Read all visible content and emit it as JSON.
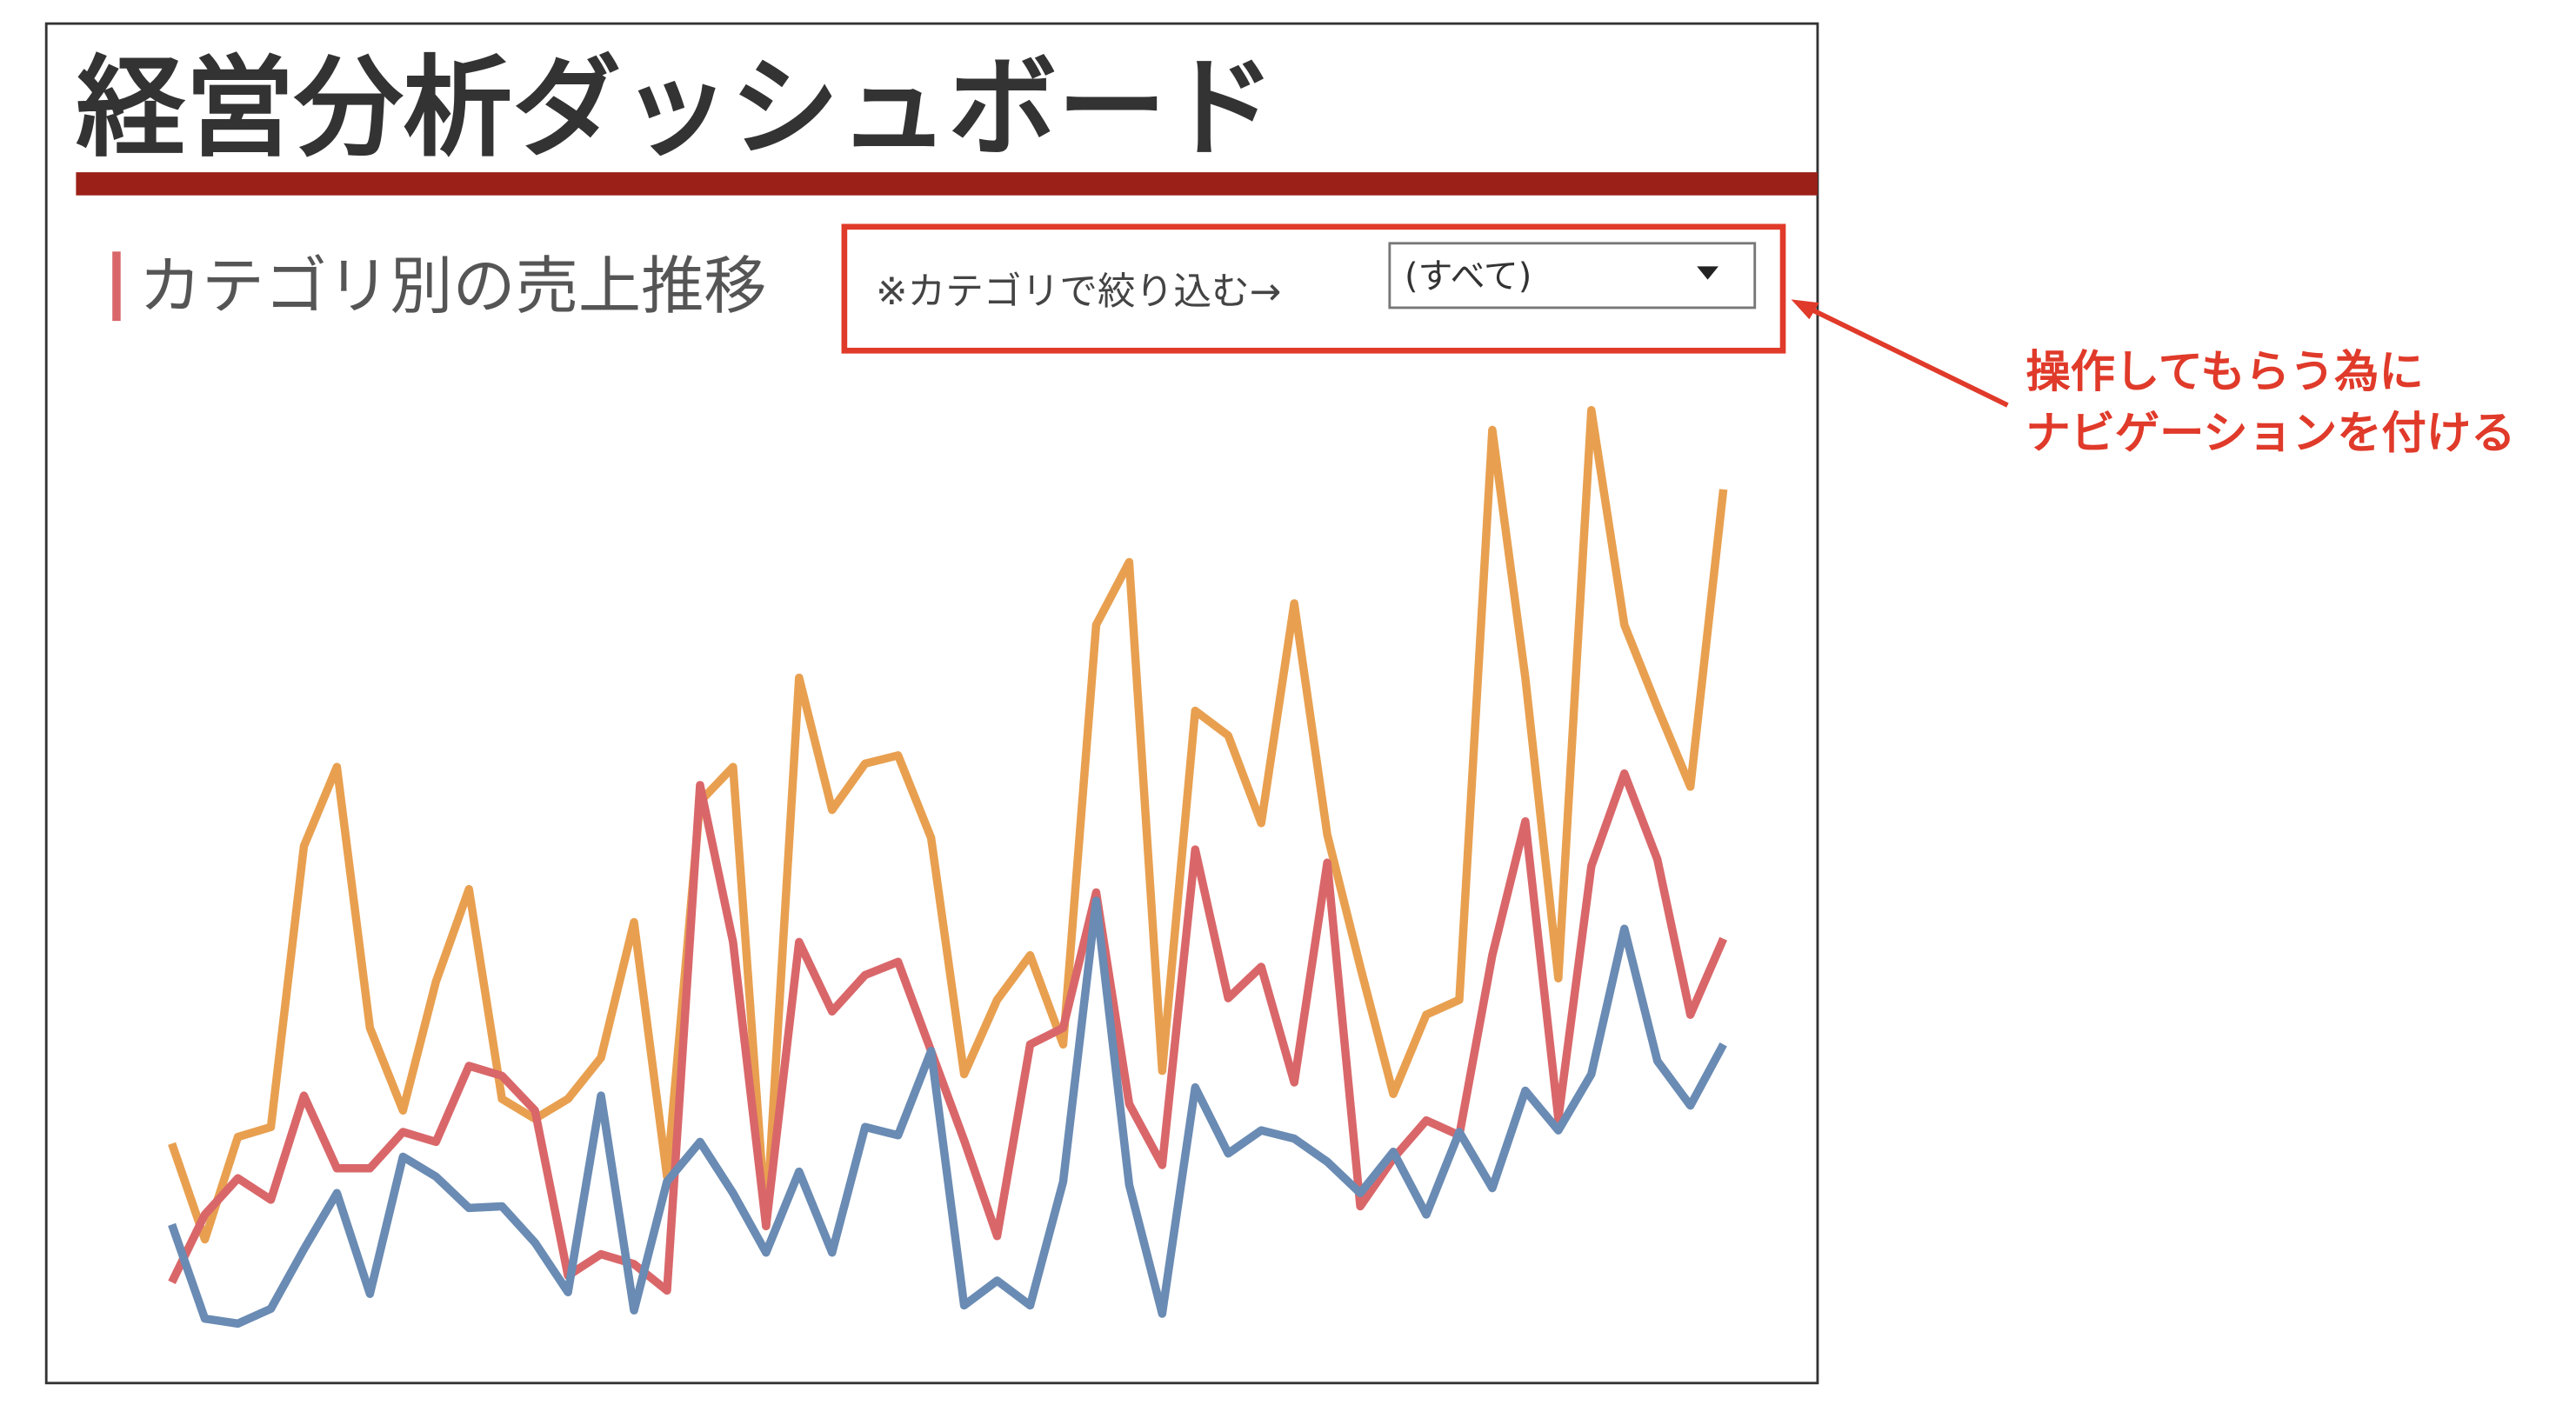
{
  "header": {
    "title": "経営分析ダッシュボード"
  },
  "section": {
    "title": "カテゴリ別の売上推移"
  },
  "filter": {
    "label": "※カテゴリで絞り込む→",
    "selected": "(すべて)"
  },
  "annotation": {
    "lines": [
      "操作してもらう為に",
      "ナビゲーションを付ける"
    ]
  },
  "chart_data": {
    "type": "line",
    "categories": [
      null,
      null,
      null,
      null,
      null,
      null,
      null,
      null,
      null,
      null,
      null,
      null,
      null,
      null,
      null,
      null,
      null,
      null,
      null,
      null,
      null,
      null,
      null,
      null,
      null,
      null,
      null,
      null,
      null,
      null,
      null,
      null,
      null,
      null,
      null,
      null,
      null,
      null,
      null,
      null,
      null,
      null,
      null,
      null,
      null,
      null,
      null,
      null
    ],
    "ylim": [
      0,
      620
    ],
    "series": [
      {
        "color": "#e8a050",
        "values": [
          138,
          80,
          142,
          148,
          318,
          366,
          208,
          158,
          236,
          292,
          165,
          153,
          165,
          190,
          272,
          118,
          345,
          366,
          88,
          420,
          340,
          368,
          373,
          323,
          180,
          225,
          252,
          198,
          452,
          490,
          182,
          400,
          385,
          332,
          465,
          325,
          245,
          168,
          216,
          225,
          570,
          420,
          238,
          582,
          452,
          402,
          354,
          534
        ]
      },
      {
        "color": "#d9676a",
        "values": [
          54,
          95,
          117,
          104,
          167,
          123,
          123,
          145,
          139,
          185,
          179,
          158,
          58,
          71,
          65,
          49,
          355,
          260,
          88,
          260,
          218,
          240,
          248,
          194,
          140,
          82,
          198,
          208,
          290,
          162,
          125,
          316,
          226,
          245,
          175,
          308,
          100,
          129,
          152,
          143,
          252,
          333,
          153,
          306,
          362,
          310,
          216,
          262
        ]
      },
      {
        "color": "#6a8bb3",
        "values": [
          89,
          32,
          29,
          38,
          74,
          108,
          47,
          130,
          118,
          99,
          100,
          78,
          48,
          167,
          37,
          115,
          139,
          108,
          72,
          121,
          72,
          148,
          143,
          194,
          40,
          55,
          40,
          115,
          285,
          113,
          35,
          172,
          132,
          146,
          141,
          127,
          108,
          133,
          95,
          145,
          111,
          170,
          146,
          180,
          268,
          188,
          161,
          198
        ]
      }
    ]
  }
}
